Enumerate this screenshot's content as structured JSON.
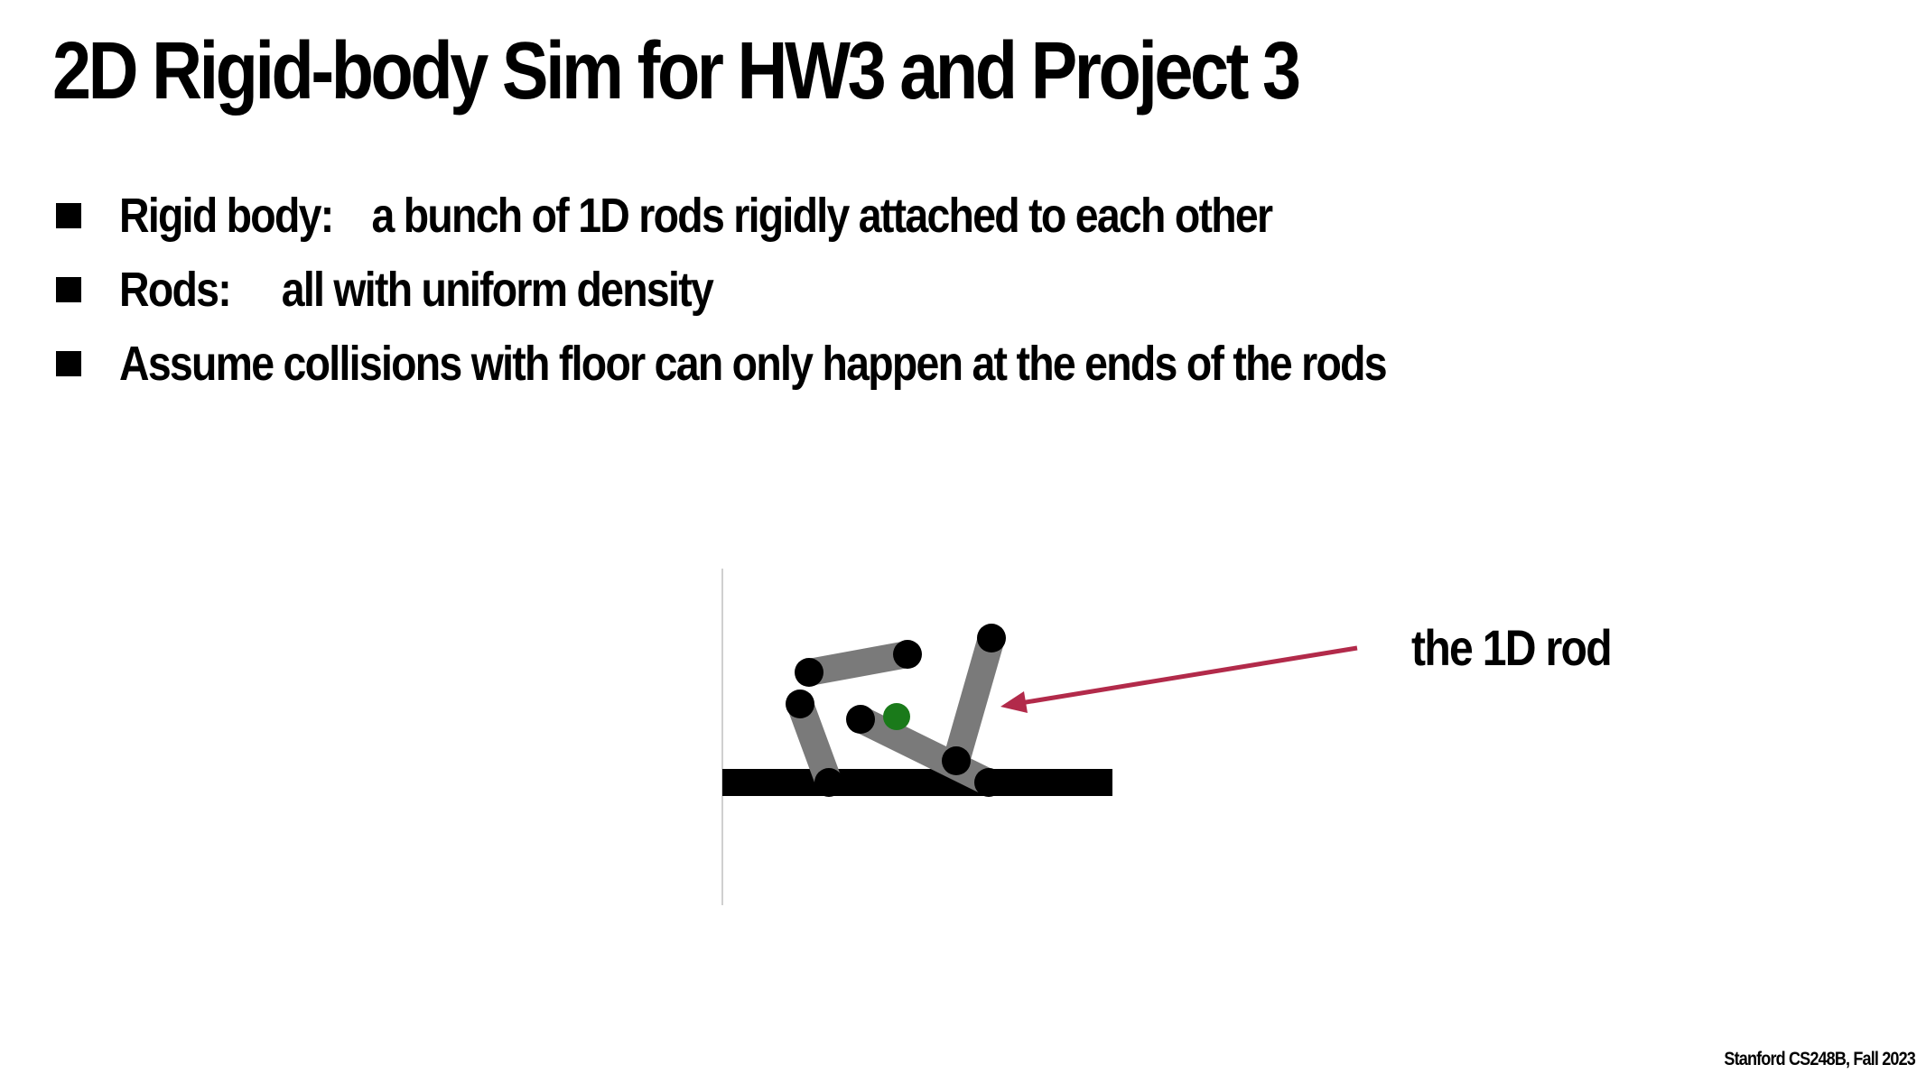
{
  "slide": {
    "title": "2D Rigid-body Sim for HW3 and Project 3",
    "bullets": [
      {
        "term": "Rigid body:",
        "text": "a bunch of 1D rods rigidly attached to each other"
      },
      {
        "term": "Rods:",
        "text": "all with uniform density"
      },
      {
        "term": "",
        "text": "Assume collisions with floor can only happen at the ends of the rods"
      }
    ],
    "diagram": {
      "annotation": "the 1D rod",
      "arrow_color": "#b22a4a",
      "rod_color": "#7a7a7a",
      "joint_color": "#000000",
      "center_of_mass_color": "#1a7a1a",
      "floor_color": "#000000"
    },
    "footer": "Stanford CS248B, Fall 2023"
  }
}
